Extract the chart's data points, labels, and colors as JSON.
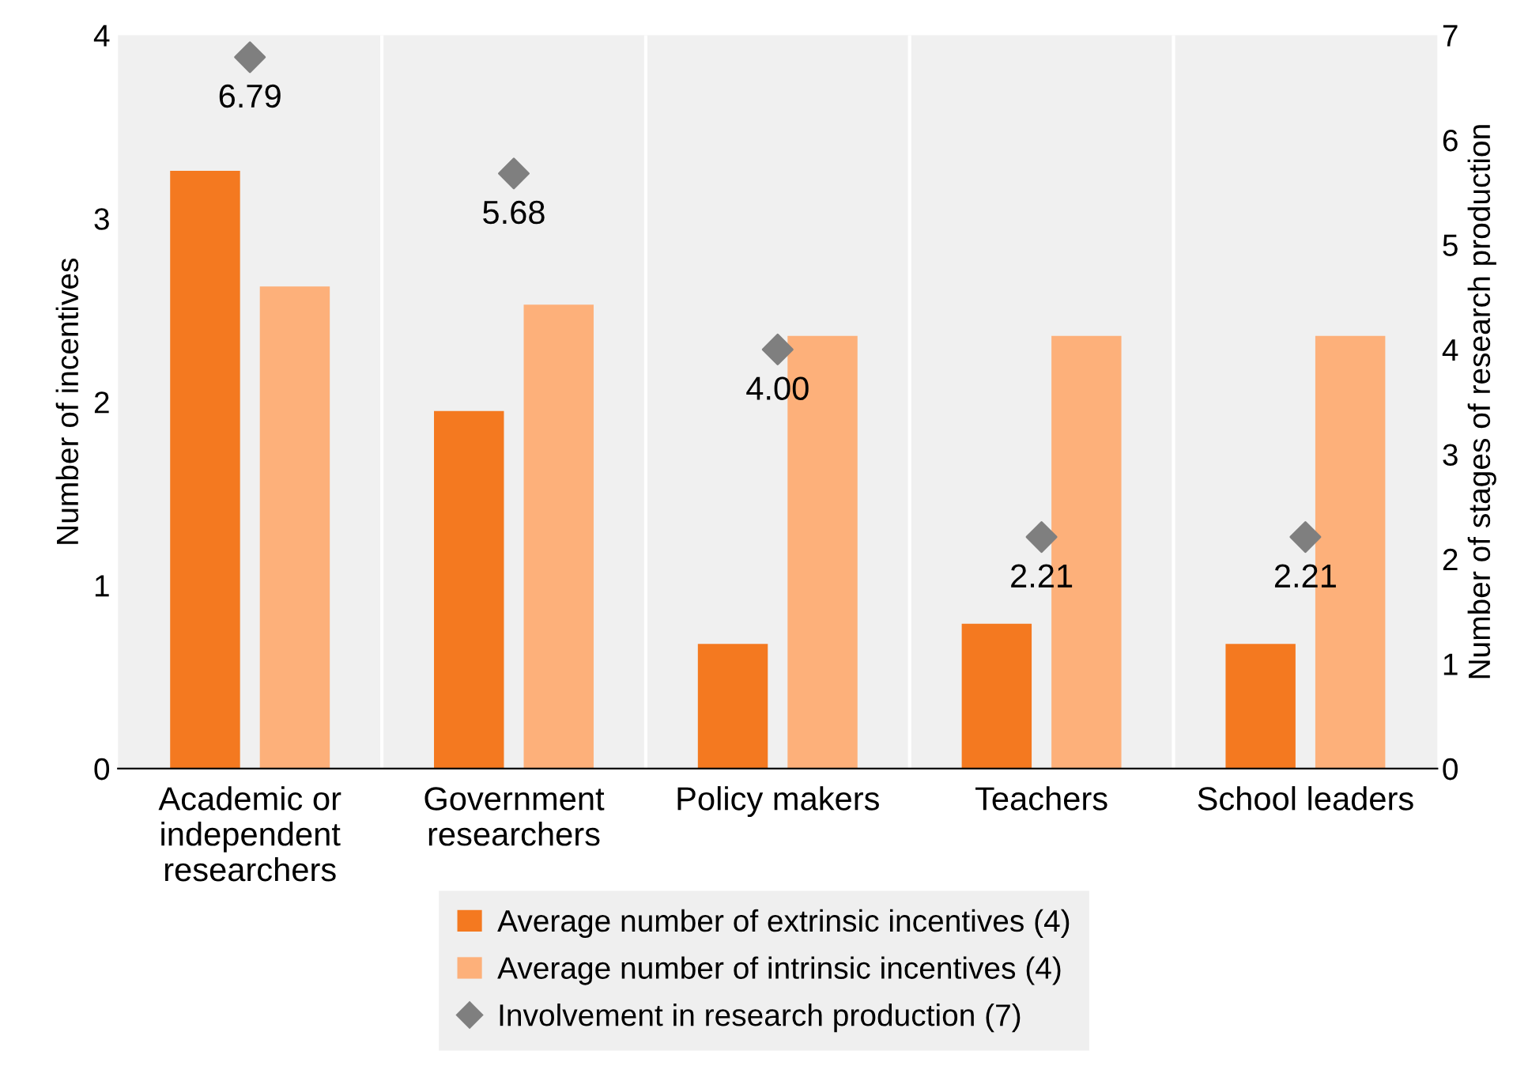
{
  "chart_data": {
    "type": "bar",
    "ylabel": "Number of incentives",
    "y2label": "Number of stages of research production",
    "categories": [
      "Academic or\nindependent\nresearchers",
      "Government\nresearchers",
      "Policy makers",
      "Teachers",
      "School leaders"
    ],
    "series": [
      {
        "name": "Average number of extrinsic incentives (4)",
        "color": "#f47920",
        "values": [
          3.26,
          1.95,
          0.68,
          0.79,
          0.68
        ]
      },
      {
        "name": "Average number of intrinsic incentives (4)",
        "color": "#fdb07a",
        "values": [
          2.63,
          2.53,
          2.36,
          2.36,
          2.36
        ]
      },
      {
        "name": "Involvement in research production (7)",
        "type": "scatter",
        "axis": "y2",
        "marker": "diamond",
        "color": "#7f7f7f",
        "values": [
          6.79,
          5.68,
          4.0,
          2.21,
          2.21
        ],
        "value_labels": [
          "6.79",
          "5.68",
          "4.00",
          "2.21",
          "2.21"
        ]
      }
    ],
    "ylim": [
      0,
      4
    ],
    "yticks": [
      0,
      1,
      2,
      3,
      4
    ],
    "y2lim": [
      0,
      7
    ],
    "y2ticks": [
      0,
      1,
      2,
      3,
      4,
      5,
      6,
      7
    ],
    "grid": "x",
    "legend": "bottom"
  }
}
